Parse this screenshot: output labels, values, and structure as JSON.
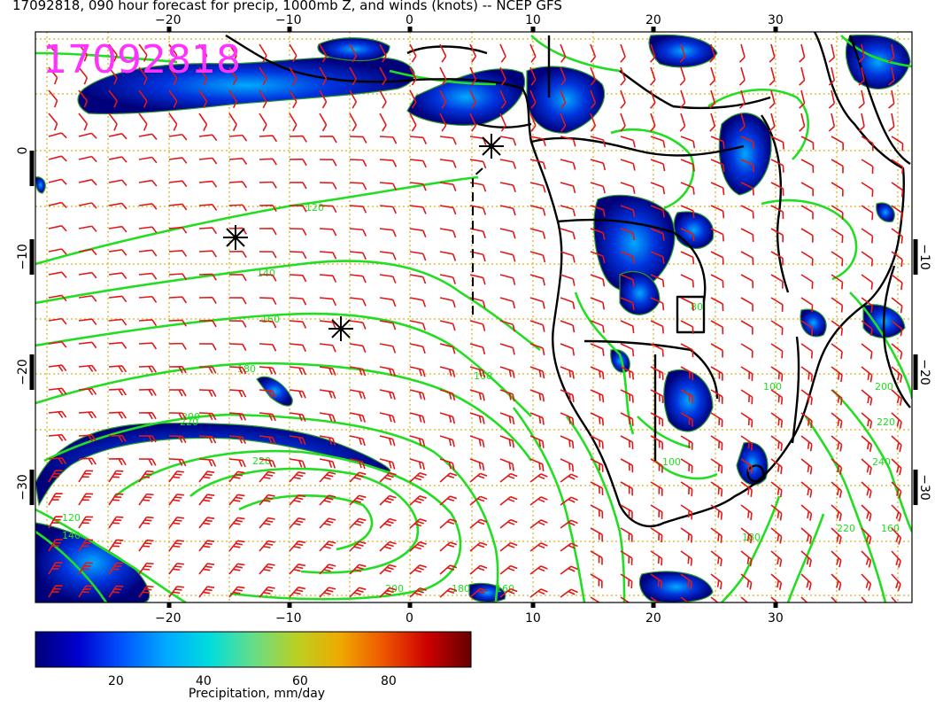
{
  "title": "17092818, 090 hour forecast for precip, 1000mb Z, and winds (knots) -- NCEP GFS",
  "stamp": "17092818",
  "axes": {
    "x_top_ticks": [
      "−20",
      "−10",
      "0",
      "10",
      "20",
      "30"
    ],
    "x_bottom_ticks": [
      "−20",
      "−10",
      "0",
      "10",
      "20",
      "30"
    ],
    "y_left_ticks": [
      "0",
      "−10",
      "−20",
      "−30"
    ],
    "y_right_ticks": [
      "−10",
      "−20",
      "−30"
    ],
    "lon_range": [
      -30,
      41
    ],
    "lat_range": [
      -40,
      9
    ]
  },
  "contours": {
    "color": "#22dd22",
    "labels": [
      "120",
      "140",
      "160",
      "180",
      "200",
      "220",
      "200",
      "180",
      "160",
      "140",
      "120",
      "100",
      "160",
      "180",
      "200",
      "220",
      "240",
      "220",
      "160",
      "100",
      "80",
      "220"
    ]
  },
  "colorbar": {
    "ticks": [
      "20",
      "40",
      "60",
      "80"
    ],
    "label": "Precipitation, mm/day",
    "range": [
      0,
      100
    ],
    "colors": [
      "#00007a",
      "#0000d0",
      "#0055ff",
      "#00aaff",
      "#00dddd",
      "#33e6a0",
      "#88e060",
      "#cccc00",
      "#ee8800",
      "#dd2200",
      "#aa0000",
      "#660000"
    ]
  },
  "markers": [
    "low-pressure",
    "high-pressure",
    "high-pressure"
  ],
  "colors": {
    "barbs": "#e01818",
    "coast": "#000000",
    "grid": "#d6b21a",
    "stamp": "#ff33ff"
  }
}
